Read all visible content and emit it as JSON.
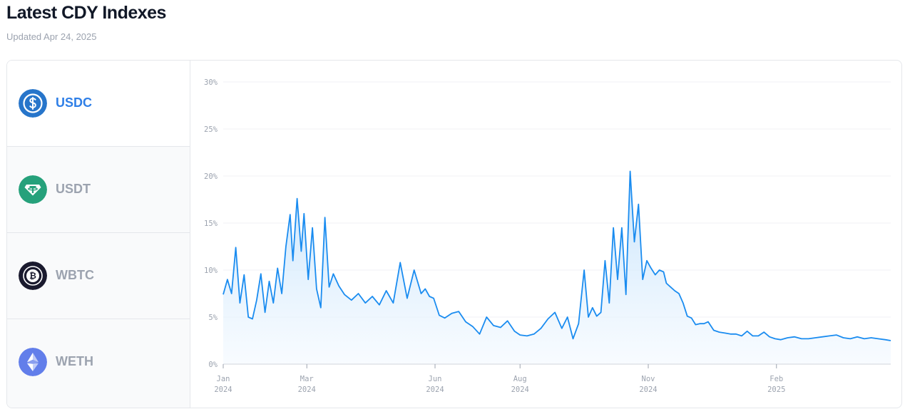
{
  "header": {
    "title": "Latest CDY Indexes",
    "updated": "Updated Apr 24, 2025"
  },
  "assets": [
    {
      "label": "USDC",
      "icon": "usdc-icon",
      "color": "#2775ca",
      "active": true
    },
    {
      "label": "USDT",
      "icon": "usdt-icon",
      "color": "#26a17b",
      "active": false
    },
    {
      "label": "WBTC",
      "icon": "wbtc-icon",
      "color": "#1a1a2e",
      "active": false
    },
    {
      "label": "WETH",
      "icon": "weth-icon",
      "color": "#627eea",
      "active": false
    }
  ],
  "colors": {
    "accent": "#2f7fe7",
    "line": "#1a8cf0",
    "area_top": "#bfe0fb",
    "area_bottom": "#f3f9ff"
  },
  "chart_data": {
    "type": "area",
    "title": "",
    "xlabel": "",
    "ylabel": "",
    "ylim": [
      0,
      30
    ],
    "y_ticks": [
      "0%",
      "5%",
      "10%",
      "15%",
      "20%",
      "25%",
      "30%"
    ],
    "x_ticks": [
      {
        "month": "Jan",
        "year": "2024",
        "date": "2024-01-01"
      },
      {
        "month": "Mar",
        "year": "2024",
        "date": "2024-03-01"
      },
      {
        "month": "Jun",
        "year": "2024",
        "date": "2024-06-01"
      },
      {
        "month": "Aug",
        "year": "2024",
        "date": "2024-08-01"
      },
      {
        "month": "Nov",
        "year": "2024",
        "date": "2024-11-01"
      },
      {
        "month": "Feb",
        "year": "2025",
        "date": "2025-02-01"
      }
    ],
    "grid": true,
    "series": [
      {
        "x": [
          "2024-01-01",
          "2024-01-04",
          "2024-01-07",
          "2024-01-10",
          "2024-01-13",
          "2024-01-16",
          "2024-01-19",
          "2024-01-22",
          "2024-01-25",
          "2024-01-28",
          "2024-01-31",
          "2024-02-03",
          "2024-02-06",
          "2024-02-09",
          "2024-02-12",
          "2024-02-15",
          "2024-02-18",
          "2024-02-20",
          "2024-02-23",
          "2024-02-26",
          "2024-02-28",
          "2024-03-02",
          "2024-03-05",
          "2024-03-08",
          "2024-03-11",
          "2024-03-14",
          "2024-03-17",
          "2024-03-20",
          "2024-03-24",
          "2024-03-28",
          "2024-04-02",
          "2024-04-07",
          "2024-04-12",
          "2024-04-17",
          "2024-04-22",
          "2024-04-27",
          "2024-05-02",
          "2024-05-07",
          "2024-05-12",
          "2024-05-17",
          "2024-05-22",
          "2024-05-25",
          "2024-05-28",
          "2024-05-31",
          "2024-06-04",
          "2024-06-08",
          "2024-06-13",
          "2024-06-18",
          "2024-06-23",
          "2024-06-28",
          "2024-07-03",
          "2024-07-08",
          "2024-07-13",
          "2024-07-18",
          "2024-07-23",
          "2024-07-28",
          "2024-08-01",
          "2024-08-06",
          "2024-08-11",
          "2024-08-16",
          "2024-08-21",
          "2024-08-26",
          "2024-08-31",
          "2024-09-04",
          "2024-09-08",
          "2024-09-12",
          "2024-09-16",
          "2024-09-19",
          "2024-09-22",
          "2024-09-25",
          "2024-09-28",
          "2024-10-01",
          "2024-10-04",
          "2024-10-07",
          "2024-10-10",
          "2024-10-13",
          "2024-10-16",
          "2024-10-19",
          "2024-10-22",
          "2024-10-25",
          "2024-10-28",
          "2024-10-31",
          "2024-11-03",
          "2024-11-06",
          "2024-11-09",
          "2024-11-12",
          "2024-11-14",
          "2024-11-17",
          "2024-11-20",
          "2024-11-23",
          "2024-11-26",
          "2024-11-29",
          "2024-12-02",
          "2024-12-05",
          "2024-12-08",
          "2024-12-11",
          "2024-12-14",
          "2024-12-18",
          "2024-12-22",
          "2024-12-26",
          "2024-12-30",
          "2025-01-03",
          "2025-01-07",
          "2025-01-11",
          "2025-01-15",
          "2025-01-19",
          "2025-01-23",
          "2025-01-27",
          "2025-01-31",
          "2025-02-04",
          "2025-02-09",
          "2025-02-14",
          "2025-02-19",
          "2025-02-24",
          "2025-03-01",
          "2025-03-06",
          "2025-03-11",
          "2025-03-16",
          "2025-03-21",
          "2025-03-26",
          "2025-03-31",
          "2025-04-05",
          "2025-04-10",
          "2025-04-15",
          "2025-04-20",
          "2025-04-24"
        ],
        "values": [
          7.4,
          9.0,
          7.5,
          12.4,
          6.5,
          9.5,
          5.0,
          4.8,
          6.8,
          9.6,
          5.5,
          8.8,
          6.5,
          10.2,
          7.5,
          12.5,
          15.9,
          11.0,
          17.6,
          12.0,
          16.0,
          9.0,
          14.5,
          8.0,
          6.0,
          15.6,
          8.2,
          9.6,
          8.3,
          7.4,
          6.8,
          7.5,
          6.5,
          7.2,
          6.3,
          7.8,
          6.5,
          10.8,
          7.0,
          10.0,
          7.5,
          8.0,
          7.2,
          7.0,
          5.2,
          4.9,
          5.4,
          5.6,
          4.5,
          4.0,
          3.2,
          5.0,
          4.1,
          3.9,
          4.6,
          3.5,
          3.1,
          3.0,
          3.2,
          3.8,
          4.8,
          5.5,
          3.8,
          5.0,
          2.7,
          4.3,
          10.0,
          5.0,
          6.0,
          5.1,
          5.5,
          11.0,
          6.5,
          14.5,
          9.0,
          14.5,
          7.4,
          20.5,
          13.0,
          17.0,
          9.0,
          11.0,
          10.2,
          9.5,
          10.0,
          9.8,
          8.6,
          8.2,
          7.8,
          7.5,
          6.5,
          5.1,
          4.9,
          4.2,
          4.3,
          4.3,
          4.5,
          3.6,
          3.4,
          3.3,
          3.2,
          3.2,
          3.0,
          3.5,
          3.0,
          3.0,
          3.4,
          2.9,
          2.7,
          2.6,
          2.8,
          2.9,
          2.7,
          2.7,
          2.8,
          2.9,
          3.0,
          3.1,
          2.8,
          2.7,
          2.9,
          2.7,
          2.8,
          2.7,
          2.6,
          2.5
        ]
      }
    ]
  }
}
